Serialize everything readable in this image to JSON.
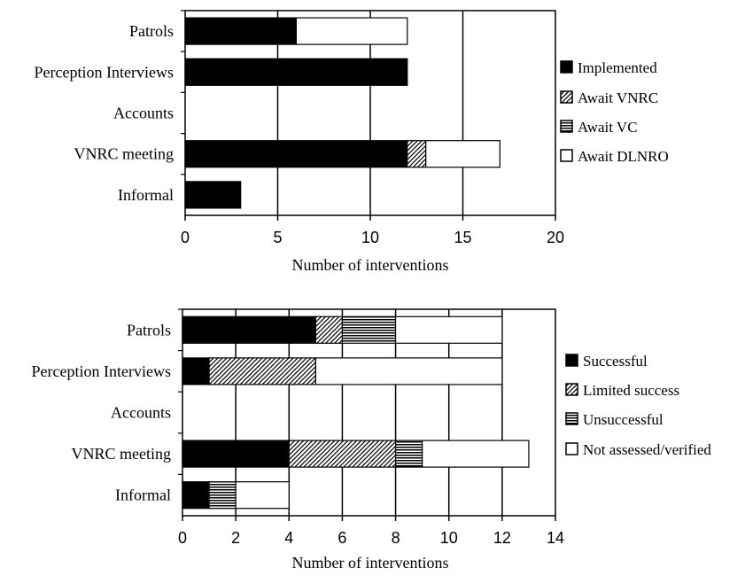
{
  "chart_data": [
    {
      "type": "bar",
      "orientation": "horizontal",
      "stacked": true,
      "categories": [
        "Patrols",
        "Perception Interviews",
        "Accounts",
        "VNRC meeting",
        "Informal"
      ],
      "series": [
        {
          "name": "Implemented",
          "values": [
            6,
            12,
            0,
            12,
            3
          ],
          "pattern": "solid"
        },
        {
          "name": "Await VNRC",
          "values": [
            0,
            0,
            0,
            1,
            0
          ],
          "pattern": "diagonal"
        },
        {
          "name": "Await VC",
          "values": [
            0,
            0,
            0,
            0,
            0
          ],
          "pattern": "horizontal"
        },
        {
          "name": "Await DLNRO",
          "values": [
            6,
            0,
            0,
            4,
            0
          ],
          "pattern": "white"
        }
      ],
      "xlabel": "Number of interventions",
      "xlim": [
        0,
        20
      ],
      "xticks": [
        0,
        5,
        10,
        15,
        20
      ],
      "grid": "vertical",
      "legend": "right"
    },
    {
      "type": "bar",
      "orientation": "horizontal",
      "stacked": true,
      "categories": [
        "Patrols",
        "Perception Interviews",
        "Accounts",
        "VNRC meeting",
        "Informal"
      ],
      "series": [
        {
          "name": "Successful",
          "values": [
            5,
            1,
            0,
            4,
            1
          ],
          "pattern": "solid"
        },
        {
          "name": "Limited success",
          "values": [
            1,
            4,
            0,
            4,
            0
          ],
          "pattern": "diagonal"
        },
        {
          "name": "Unsuccessful",
          "values": [
            2,
            0,
            0,
            1,
            1
          ],
          "pattern": "horizontal"
        },
        {
          "name": "Not assessed/verified",
          "values": [
            4,
            7,
            0,
            4,
            2
          ],
          "pattern": "white"
        }
      ],
      "xlabel": "Number of interventions",
      "xlim": [
        0,
        14
      ],
      "xticks": [
        0,
        2,
        4,
        6,
        8,
        10,
        12,
        14
      ],
      "grid": "vertical",
      "legend": "right"
    }
  ]
}
